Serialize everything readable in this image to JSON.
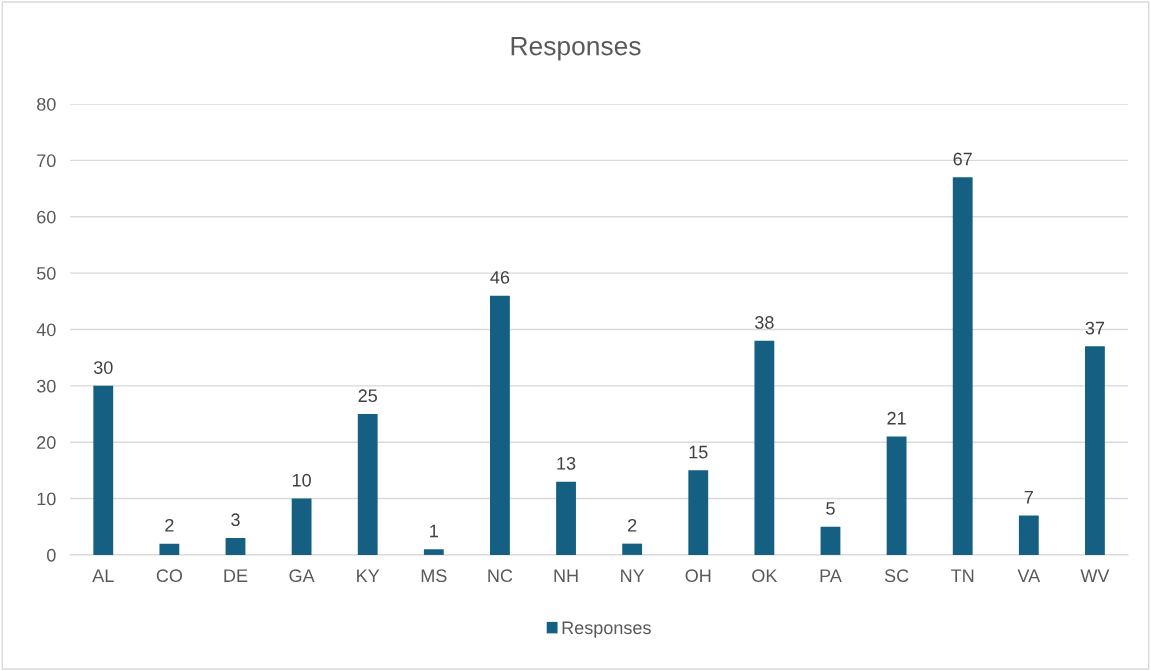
{
  "chart_data": {
    "type": "bar",
    "title": "Responses",
    "categories": [
      "AL",
      "CO",
      "DE",
      "GA",
      "KY",
      "MS",
      "NC",
      "NH",
      "NY",
      "OH",
      "OK",
      "PA",
      "SC",
      "TN",
      "VA",
      "WV"
    ],
    "series": [
      {
        "name": "Responses",
        "color": "#156082",
        "values": [
          30,
          2,
          3,
          10,
          25,
          1,
          46,
          13,
          2,
          15,
          38,
          5,
          21,
          67,
          7,
          37
        ]
      }
    ],
    "ylim": [
      0,
      80
    ],
    "yticks": [
      0,
      10,
      20,
      30,
      40,
      50,
      60,
      70,
      80
    ],
    "grid": "y",
    "legend": "bottom",
    "data_labels": true
  }
}
